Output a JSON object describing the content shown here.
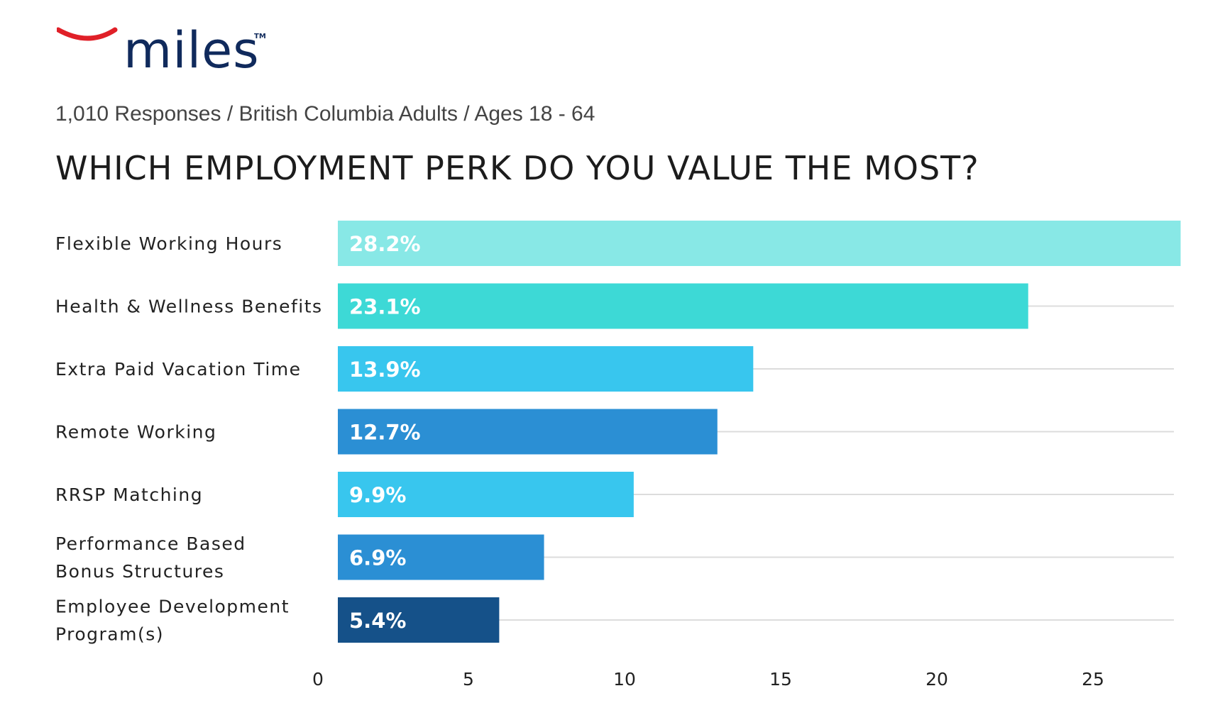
{
  "brand": {
    "name": "miles",
    "trademark": "TM",
    "arc_color": "#e02028",
    "text_color": "#102a5c"
  },
  "subtitle": "1,010 Responses  /  British Columbia Adults  /  Ages 18 - 64",
  "chart_data": {
    "type": "bar",
    "orientation": "horizontal",
    "title": "WHICH EMPLOYMENT PERK DO YOU VALUE THE MOST?",
    "xlabel": "",
    "ylabel": "",
    "categories": [
      [
        "Flexible Working Hours"
      ],
      [
        "Health & Wellness Benefits"
      ],
      [
        "Extra Paid Vacation Time"
      ],
      [
        "Remote Working"
      ],
      [
        "RRSP Matching"
      ],
      [
        "Performance Based",
        "Bonus Structures"
      ],
      [
        "Employee Development",
        "Program(s)"
      ]
    ],
    "values": [
      28.2,
      23.1,
      13.9,
      12.7,
      9.9,
      6.9,
      5.4
    ],
    "data_labels": [
      "28.2%",
      "23.1%",
      "13.9%",
      "12.7%",
      "9.9%",
      "6.9%",
      "5.4%"
    ],
    "colors": [
      "#88e8e6",
      "#3dd9d6",
      "#38c6ee",
      "#2b8fd4",
      "#38c6ee",
      "#2b8fd4",
      "#155189"
    ],
    "xticks": [
      0,
      5,
      10,
      15,
      20,
      25
    ],
    "xlim": [
      0,
      27.5
    ],
    "grid": true,
    "legend": "none"
  }
}
